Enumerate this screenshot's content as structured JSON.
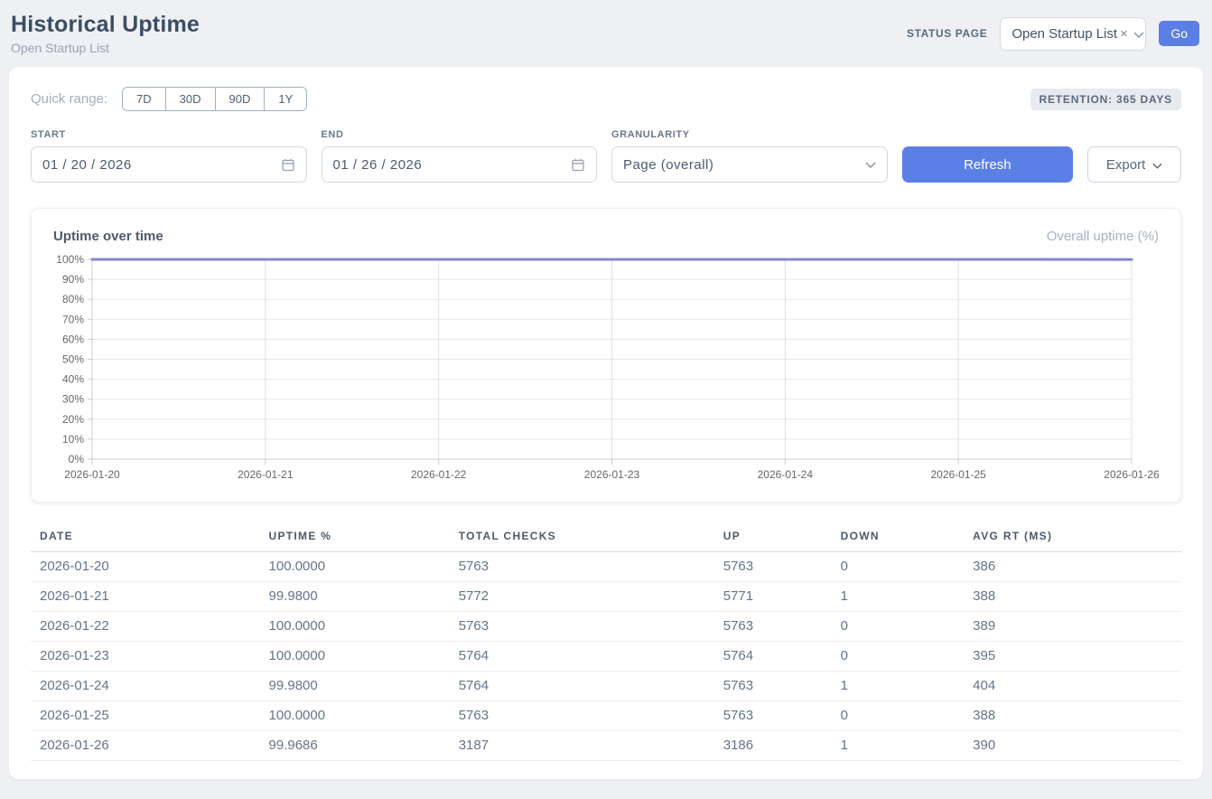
{
  "header": {
    "title": "Historical Uptime",
    "subtitle": "Open Startup List",
    "status_page_label": "STATUS PAGE",
    "status_page_selected": "Open Startup List",
    "clear_icon": "×",
    "go_label": "Go"
  },
  "controls": {
    "quick_range_label": "Quick range:",
    "quick_ranges": [
      "7D",
      "30D",
      "90D",
      "1Y"
    ],
    "retention_badge": "RETENTION: 365 DAYS",
    "start_label": "START",
    "start_value": "01 / 20 / 2026",
    "end_label": "END",
    "end_value": "01 / 26 / 2026",
    "granularity_label": "GRANULARITY",
    "granularity_value": "Page (overall)",
    "refresh_label": "Refresh",
    "export_label": "Export"
  },
  "chart": {
    "title": "Uptime over time",
    "legend": "Overall uptime (%)"
  },
  "chart_data": {
    "type": "line",
    "title": "Uptime over time",
    "categories": [
      "2026-01-20",
      "2026-01-21",
      "2026-01-22",
      "2026-01-23",
      "2026-01-24",
      "2026-01-25",
      "2026-01-26"
    ],
    "series": [
      {
        "name": "Overall uptime (%)",
        "values": [
          100.0,
          99.98,
          100.0,
          100.0,
          99.98,
          100.0,
          99.9686
        ]
      }
    ],
    "xlabel": "",
    "ylabel": "",
    "ylim": [
      0,
      100
    ],
    "y_ticks": [
      0,
      10,
      20,
      30,
      40,
      50,
      60,
      70,
      80,
      90,
      100
    ],
    "y_tick_suffix": "%",
    "grid": true,
    "legend_position": "top-right",
    "line_color": "#8884d8"
  },
  "table": {
    "columns": [
      "DATE",
      "UPTIME %",
      "TOTAL CHECKS",
      "UP",
      "DOWN",
      "AVG RT (MS)"
    ],
    "column_widths_pct": [
      19.9,
      16.5,
      23.0,
      10.2,
      11.5,
      18.9
    ],
    "rows": [
      [
        "2026-01-20",
        "100.0000",
        "5763",
        "5763",
        "0",
        "386"
      ],
      [
        "2026-01-21",
        "99.9800",
        "5772",
        "5771",
        "1",
        "388"
      ],
      [
        "2026-01-22",
        "100.0000",
        "5763",
        "5763",
        "0",
        "389"
      ],
      [
        "2026-01-23",
        "100.0000",
        "5764",
        "5764",
        "0",
        "395"
      ],
      [
        "2026-01-24",
        "99.9800",
        "5764",
        "5763",
        "1",
        "404"
      ],
      [
        "2026-01-25",
        "100.0000",
        "5763",
        "5763",
        "0",
        "388"
      ],
      [
        "2026-01-26",
        "99.9686",
        "3187",
        "3186",
        "1",
        "390"
      ]
    ]
  },
  "colors": {
    "accent": "#5b80e5",
    "chart_line": "#8884d8",
    "grid_horizontal": "#e8e8e8",
    "grid_vertical": "#e0e0e0",
    "axis": "#cccccc",
    "axis_text": "#666666"
  }
}
